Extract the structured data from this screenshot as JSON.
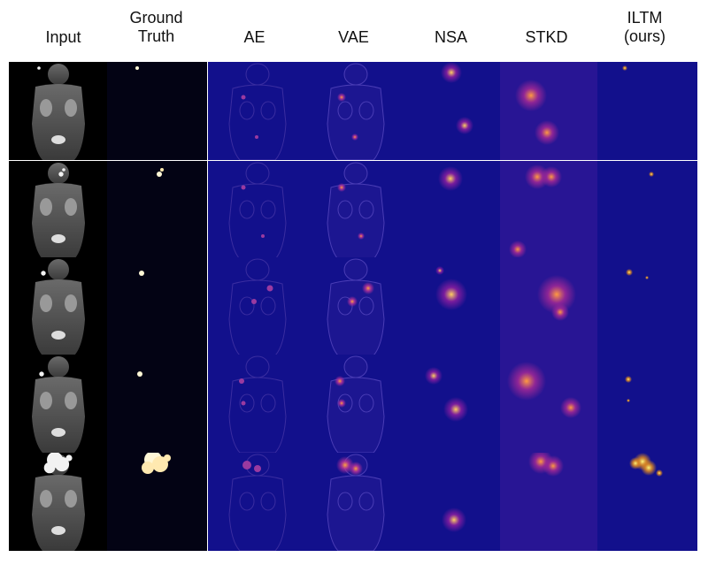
{
  "figure": {
    "columns": [
      {
        "key": "input",
        "label": "Input"
      },
      {
        "key": "gt",
        "label": "Ground\nTruth"
      },
      {
        "key": "ae",
        "label": "AE"
      },
      {
        "key": "vae",
        "label": "VAE"
      },
      {
        "key": "nsa",
        "label": "NSA"
      },
      {
        "key": "stkd",
        "label": "STKD"
      },
      {
        "key": "iltm",
        "label": "ILTM\n(ours)"
      }
    ],
    "rows": 5,
    "colors": {
      "background": "#ffffff",
      "input_bg": "#000000",
      "ground_truth_bg": "#030314",
      "heatmap_bg": "#12108c",
      "hot_spot": "#ffe066",
      "mid_heat": "#c0318f"
    }
  }
}
